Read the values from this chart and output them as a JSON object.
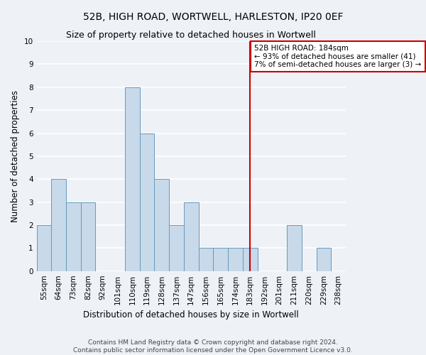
{
  "title1": "52B, HIGH ROAD, WORTWELL, HARLESTON, IP20 0EF",
  "title2": "Size of property relative to detached houses in Wortwell",
  "xlabel": "Distribution of detached houses by size in Wortwell",
  "ylabel": "Number of detached properties",
  "bin_labels": [
    "55sqm",
    "64sqm",
    "73sqm",
    "82sqm",
    "92sqm",
    "101sqm",
    "110sqm",
    "119sqm",
    "128sqm",
    "137sqm",
    "147sqm",
    "156sqm",
    "165sqm",
    "174sqm",
    "183sqm",
    "192sqm",
    "201sqm",
    "211sqm",
    "220sqm",
    "229sqm",
    "238sqm"
  ],
  "bar_values": [
    2,
    4,
    3,
    3,
    0,
    0,
    8,
    6,
    4,
    2,
    3,
    1,
    1,
    1,
    1,
    0,
    0,
    2,
    0,
    1,
    0
  ],
  "bar_color": "#c8d9ea",
  "bar_edge_color": "#6699bb",
  "vline_index": 14,
  "vline_color": "#cc0000",
  "annotation_text": "52B HIGH ROAD: 184sqm\n← 93% of detached houses are smaller (41)\n7% of semi-detached houses are larger (3) →",
  "annotation_box_color": "#ffffff",
  "annotation_box_edge": "#cc0000",
  "ylim": [
    0,
    10
  ],
  "yticks": [
    0,
    1,
    2,
    3,
    4,
    5,
    6,
    7,
    8,
    9,
    10
  ],
  "footnote1": "Contains HM Land Registry data © Crown copyright and database right 2024.",
  "footnote2": "Contains public sector information licensed under the Open Government Licence v3.0.",
  "bg_color": "#eef2f7",
  "grid_color": "#ffffff",
  "title1_fontsize": 10,
  "title2_fontsize": 9,
  "axis_label_fontsize": 8.5,
  "tick_fontsize": 7.5,
  "annotation_fontsize": 7.5,
  "footnote_fontsize": 6.5
}
